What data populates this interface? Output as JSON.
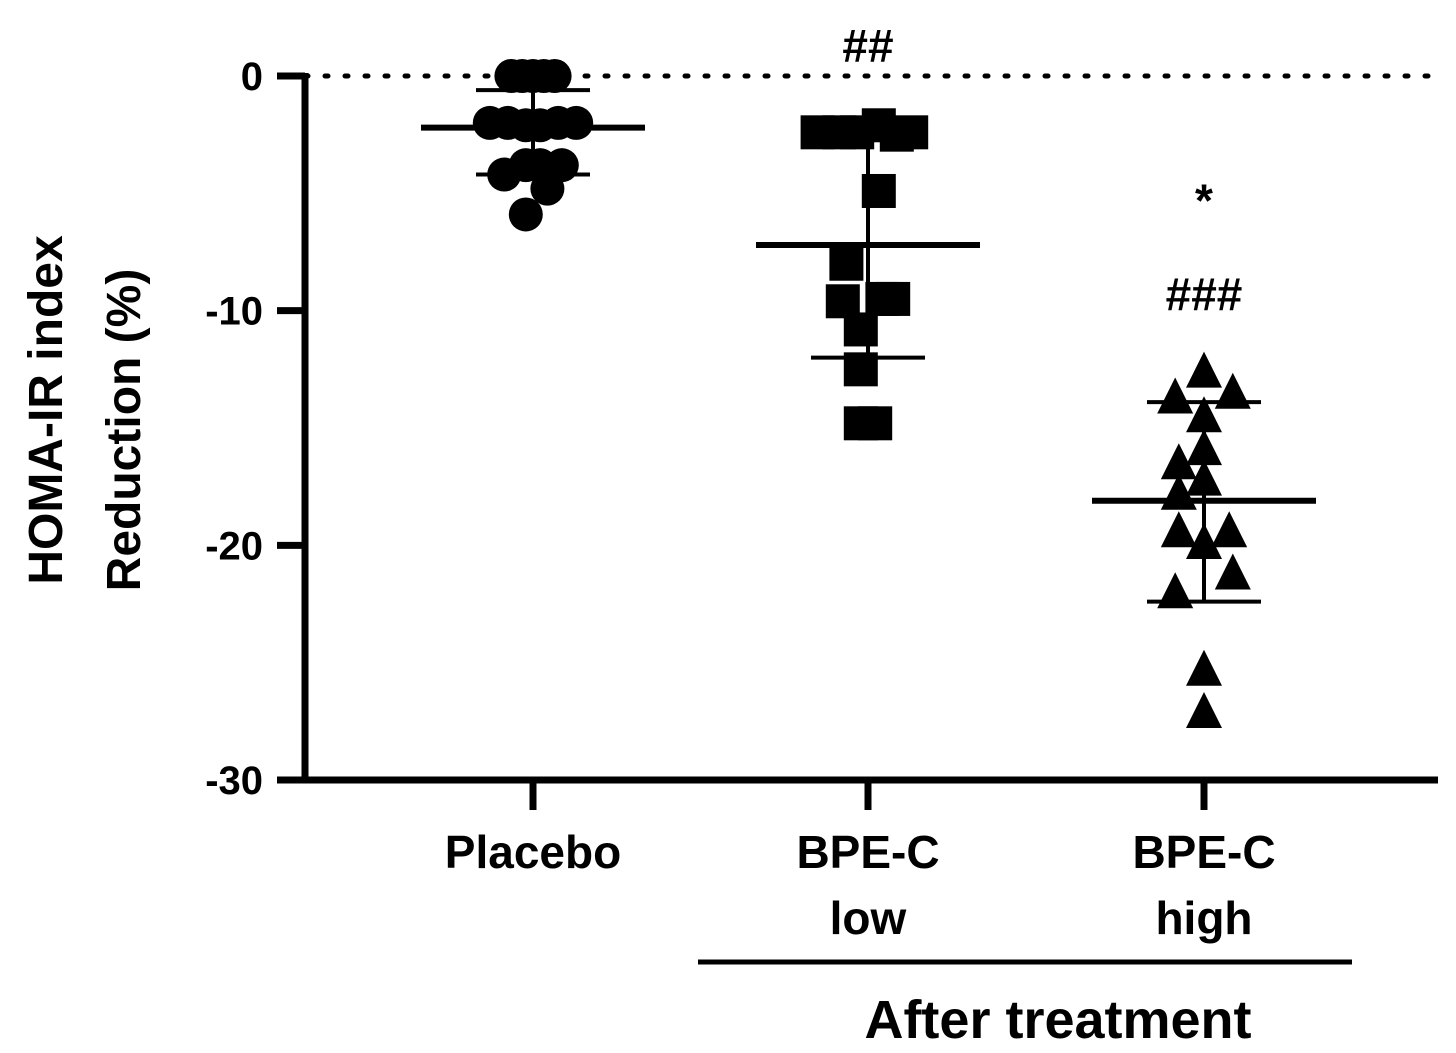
{
  "chart_data": {
    "type": "scatter",
    "ylabel_line1": "HOMA-IR index",
    "ylabel_line2": "Reduction (%)",
    "ylim": [
      -30,
      0
    ],
    "yticks": [
      0,
      -10,
      -20,
      -30
    ],
    "reference_line_y": 0,
    "categories": [
      {
        "line1": "Placebo",
        "line2": ""
      },
      {
        "line1": "BPE-C",
        "line2": "low"
      },
      {
        "line1": "BPE-C",
        "line2": "high"
      }
    ],
    "group_label": "After treatment",
    "series": [
      {
        "category_index": 0,
        "marker": "circle",
        "mean": -2.2,
        "sd_upper": -0.6,
        "sd_lower": -4.2,
        "points": [
          {
            "x": 0,
            "y": 0
          },
          {
            "x": -0.3,
            "y": 0
          },
          {
            "x": 0.3,
            "y": 0
          },
          {
            "x": -0.6,
            "y": 0
          },
          {
            "x": 0.6,
            "y": 0
          },
          {
            "x": -1.2,
            "y": -2.0
          },
          {
            "x": -0.7,
            "y": -2.0
          },
          {
            "x": -0.2,
            "y": -2.1
          },
          {
            "x": 0.2,
            "y": -2.1
          },
          {
            "x": 0.7,
            "y": -2.0
          },
          {
            "x": 1.2,
            "y": -2.0
          },
          {
            "x": -0.8,
            "y": -4.2
          },
          {
            "x": -0.2,
            "y": -3.8
          },
          {
            "x": 0.2,
            "y": -3.8
          },
          {
            "x": 0.8,
            "y": -3.8
          },
          {
            "x": 0.4,
            "y": -4.8
          },
          {
            "x": -0.2,
            "y": -5.9
          }
        ]
      },
      {
        "category_index": 1,
        "marker": "square",
        "mean": -7.2,
        "sd_upper": -2.6,
        "sd_lower": -12.0,
        "points": [
          {
            "x": -1.4,
            "y": -2.4
          },
          {
            "x": -0.8,
            "y": -2.4
          },
          {
            "x": -0.3,
            "y": -2.4
          },
          {
            "x": 0.3,
            "y": -2.1
          },
          {
            "x": 0.8,
            "y": -2.5
          },
          {
            "x": 1.2,
            "y": -2.4
          },
          {
            "x": 0.3,
            "y": -4.9
          },
          {
            "x": -0.6,
            "y": -8.0
          },
          {
            "x": -0.7,
            "y": -9.6
          },
          {
            "x": 0.4,
            "y": -9.5
          },
          {
            "x": 0.7,
            "y": -9.5
          },
          {
            "x": -0.2,
            "y": -10.8
          },
          {
            "x": -0.2,
            "y": -12.5
          },
          {
            "x": -0.2,
            "y": -14.8
          },
          {
            "x": 0.2,
            "y": -14.8
          }
        ]
      },
      {
        "category_index": 2,
        "marker": "triangle",
        "mean": -18.1,
        "sd_upper": -13.9,
        "sd_lower": -22.4,
        "points": [
          {
            "x": 0,
            "y": -12.6
          },
          {
            "x": -0.8,
            "y": -13.7
          },
          {
            "x": 0.8,
            "y": -13.5
          },
          {
            "x": 0,
            "y": -14.5
          },
          {
            "x": 0,
            "y": -15.9
          },
          {
            "x": -0.7,
            "y": -16.5
          },
          {
            "x": 0,
            "y": -17.2
          },
          {
            "x": -0.7,
            "y": -17.8
          },
          {
            "x": -0.7,
            "y": -19.4
          },
          {
            "x": 0,
            "y": -19.9
          },
          {
            "x": 0.7,
            "y": -19.4
          },
          {
            "x": 0.8,
            "y": -21.2
          },
          {
            "x": -0.8,
            "y": -22.0
          },
          {
            "x": 0,
            "y": -25.3
          },
          {
            "x": 0,
            "y": -27.1
          }
        ]
      }
    ],
    "annotations": [
      {
        "category_index": 1,
        "text": "##",
        "y": 1.3
      },
      {
        "category_index": 2,
        "text": "*",
        "y": -5.3
      },
      {
        "category_index": 2,
        "text": "###",
        "y": -9.3
      }
    ]
  }
}
